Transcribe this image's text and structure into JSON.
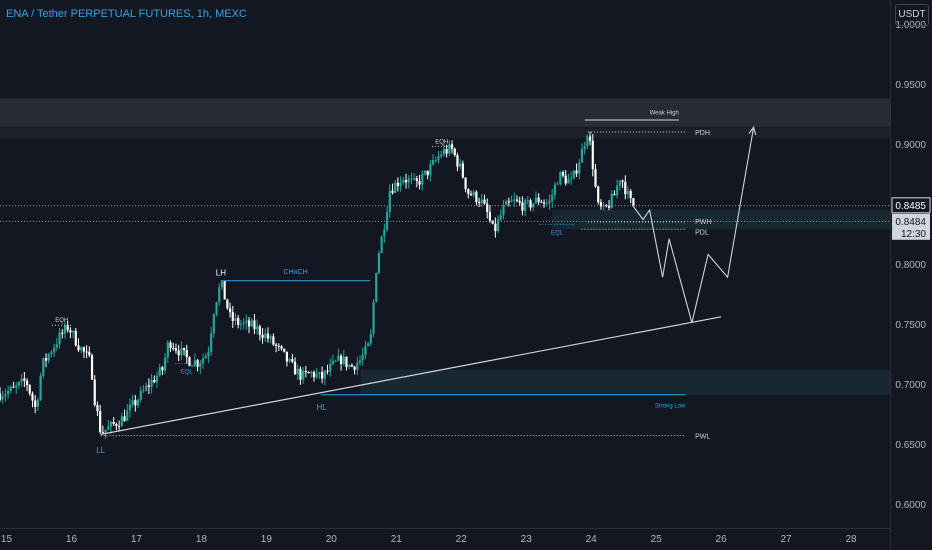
{
  "header": {
    "title": "ENA / Tether PERPETUAL FUTURES, 1h, MEXC"
  },
  "axis": {
    "currency_button": "USDT"
  },
  "colors": {
    "bg": "#131722",
    "up": "#26a69a",
    "down": "#ffffff",
    "accent": "#2ea3e8",
    "line": "#d1d4dc"
  },
  "chart_data": {
    "type": "candlestick",
    "ylim": [
      0.58,
      1.02
    ],
    "xlim": [
      14.9,
      28.6
    ],
    "x_ticks": [
      15,
      16,
      17,
      18,
      19,
      20,
      21,
      22,
      23,
      24,
      25,
      26,
      27,
      28
    ],
    "y_ticks": [
      "1.0000",
      "0.9500",
      "0.9000",
      "0.8500",
      "0.8000",
      "0.7500",
      "0.7000",
      "0.6500",
      "0.6000"
    ],
    "price_labels": {
      "last": "0.8485",
      "current": "0.8484",
      "countdown": "12:30"
    },
    "price_path": [
      [
        14.9,
        0.692
      ],
      [
        15.1,
        0.695
      ],
      [
        15.3,
        0.703
      ],
      [
        15.45,
        0.679
      ],
      [
        15.55,
        0.716
      ],
      [
        15.8,
        0.738
      ],
      [
        15.95,
        0.748
      ],
      [
        16.1,
        0.733
      ],
      [
        16.3,
        0.718
      ],
      [
        16.35,
        0.69
      ],
      [
        16.45,
        0.66
      ],
      [
        16.6,
        0.664
      ],
      [
        16.8,
        0.672
      ],
      [
        17.0,
        0.686
      ],
      [
        17.2,
        0.7
      ],
      [
        17.4,
        0.712
      ],
      [
        17.5,
        0.736
      ],
      [
        17.6,
        0.731
      ],
      [
        17.8,
        0.72
      ],
      [
        17.95,
        0.718
      ],
      [
        18.1,
        0.726
      ],
      [
        18.2,
        0.765
      ],
      [
        18.3,
        0.784
      ],
      [
        18.45,
        0.754
      ],
      [
        18.6,
        0.75
      ],
      [
        18.8,
        0.748
      ],
      [
        19.0,
        0.74
      ],
      [
        19.2,
        0.728
      ],
      [
        19.4,
        0.714
      ],
      [
        19.55,
        0.706
      ],
      [
        19.7,
        0.709
      ],
      [
        19.85,
        0.705
      ],
      [
        20.0,
        0.714
      ],
      [
        20.15,
        0.721
      ],
      [
        20.3,
        0.714
      ],
      [
        20.45,
        0.72
      ],
      [
        20.6,
        0.734
      ],
      [
        20.7,
        0.802
      ],
      [
        20.8,
        0.828
      ],
      [
        20.9,
        0.862
      ],
      [
        21.1,
        0.872
      ],
      [
        21.3,
        0.866
      ],
      [
        21.5,
        0.878
      ],
      [
        21.7,
        0.893
      ],
      [
        21.85,
        0.896
      ],
      [
        22.0,
        0.878
      ],
      [
        22.1,
        0.86
      ],
      [
        22.3,
        0.853
      ],
      [
        22.4,
        0.842
      ],
      [
        22.5,
        0.826
      ],
      [
        22.65,
        0.846
      ],
      [
        22.8,
        0.852
      ],
      [
        23.0,
        0.848
      ],
      [
        23.2,
        0.854
      ],
      [
        23.35,
        0.85
      ],
      [
        23.5,
        0.874
      ],
      [
        23.7,
        0.868
      ],
      [
        23.85,
        0.892
      ],
      [
        23.95,
        0.912
      ],
      [
        24.0,
        0.894
      ],
      [
        24.1,
        0.848
      ],
      [
        24.2,
        0.844
      ],
      [
        24.35,
        0.856
      ],
      [
        24.45,
        0.874
      ],
      [
        24.6,
        0.852
      ],
      [
        24.65,
        0.8485
      ]
    ],
    "projection_path": [
      [
        24.65,
        0.848
      ],
      [
        24.8,
        0.837
      ],
      [
        24.9,
        0.845
      ],
      [
        25.1,
        0.789
      ],
      [
        25.2,
        0.821
      ],
      [
        25.55,
        0.751
      ],
      [
        25.8,
        0.808
      ],
      [
        26.1,
        0.789
      ],
      [
        26.5,
        0.914
      ]
    ],
    "zones": [
      {
        "x0": 14.9,
        "x1": 28.6,
        "y0": 0.914,
        "y1": 0.938,
        "color": "#2a2e39"
      },
      {
        "x0": 14.9,
        "x1": 28.6,
        "y0": 0.905,
        "y1": 0.913,
        "color": "#1e222d"
      },
      {
        "x0": 20.45,
        "x1": 28.6,
        "y0": 0.691,
        "y1": 0.712,
        "color": "#1a2a33"
      },
      {
        "x0": 23.4,
        "x1": 28.6,
        "y0": 0.829,
        "y1": 0.845,
        "color": "#1a2a33"
      }
    ],
    "levels": [
      {
        "x0": 14.9,
        "x1": 28.6,
        "y": 0.8485,
        "style": "dotted",
        "color": "#9598a1"
      },
      {
        "x0": 14.9,
        "x1": 28.6,
        "y": 0.8355,
        "style": "dotted",
        "color": "#9598a1"
      },
      {
        "x0": 23.9,
        "x1": 25.35,
        "y": 0.92,
        "style": "solid",
        "color": "#d1d4dc",
        "label": "Weak High",
        "label_x": 25.35,
        "label_y": 0.927,
        "label_anchor": "end"
      },
      {
        "x0": 23.95,
        "x1": 25.45,
        "y": 0.91,
        "style": "dotted",
        "color": "#d1d4dc",
        "label": "PDH",
        "label_x": 25.6,
        "label_y": 0.91,
        "label_anchor": "start"
      },
      {
        "x0": 23.95,
        "x1": 25.45,
        "y": 0.835,
        "style": "dotted",
        "color": "#d1d4dc",
        "label": "PWH",
        "label_x": 25.6,
        "label_y": 0.836,
        "label_anchor": "start"
      },
      {
        "x0": 23.85,
        "x1": 25.45,
        "y": 0.829,
        "style": "dotted",
        "color": "#d1d4dc",
        "label": "PDL",
        "label_x": 25.6,
        "label_y": 0.827,
        "label_anchor": "start"
      },
      {
        "x0": 16.45,
        "x1": 25.45,
        "y": 0.657,
        "style": "dotted",
        "color": "#d1d4dc",
        "label": "PWL",
        "label_x": 25.6,
        "label_y": 0.657,
        "label_anchor": "start"
      },
      {
        "x0": 19.85,
        "x1": 25.45,
        "y": 0.691,
        "style": "solid",
        "color": "#2ea3e8",
        "label": "Strong Low",
        "label_x": 25.45,
        "label_y": 0.683,
        "label_anchor": "end"
      },
      {
        "x0": 18.3,
        "x1": 20.6,
        "y": 0.786,
        "style": "solid",
        "color": "#2ea3e8",
        "label": "CHoCH",
        "label_x": 19.45,
        "label_y": 0.794,
        "label_anchor": "middle"
      }
    ],
    "trendline": {
      "x0": 16.45,
      "y0": 0.658,
      "x1": 26.0,
      "y1": 0.756,
      "color": "#d1d4dc"
    },
    "liquidity_marks": [
      {
        "label": "EQH",
        "x0": 15.7,
        "x1": 16.0,
        "y": 0.749,
        "color": "#d1d4dc"
      },
      {
        "label": "EQL",
        "x0": 17.6,
        "x1": 17.95,
        "y": 0.717,
        "color": "#2ea3e8"
      },
      {
        "label": "EQH",
        "x0": 21.55,
        "x1": 21.85,
        "y": 0.898,
        "color": "#d1d4dc"
      },
      {
        "label": "EQL",
        "x0": 23.2,
        "x1": 23.75,
        "y": 0.833,
        "color": "#2ea3e8"
      }
    ],
    "structure_labels": [
      {
        "text": "LL",
        "x": 16.45,
        "y": 0.645,
        "color": "#2ea3e8"
      },
      {
        "text": "LH",
        "x": 18.3,
        "y": 0.793,
        "color": "#ffffff"
      },
      {
        "text": "HL",
        "x": 19.85,
        "y": 0.681,
        "color": "#2ea3e8"
      }
    ]
  }
}
